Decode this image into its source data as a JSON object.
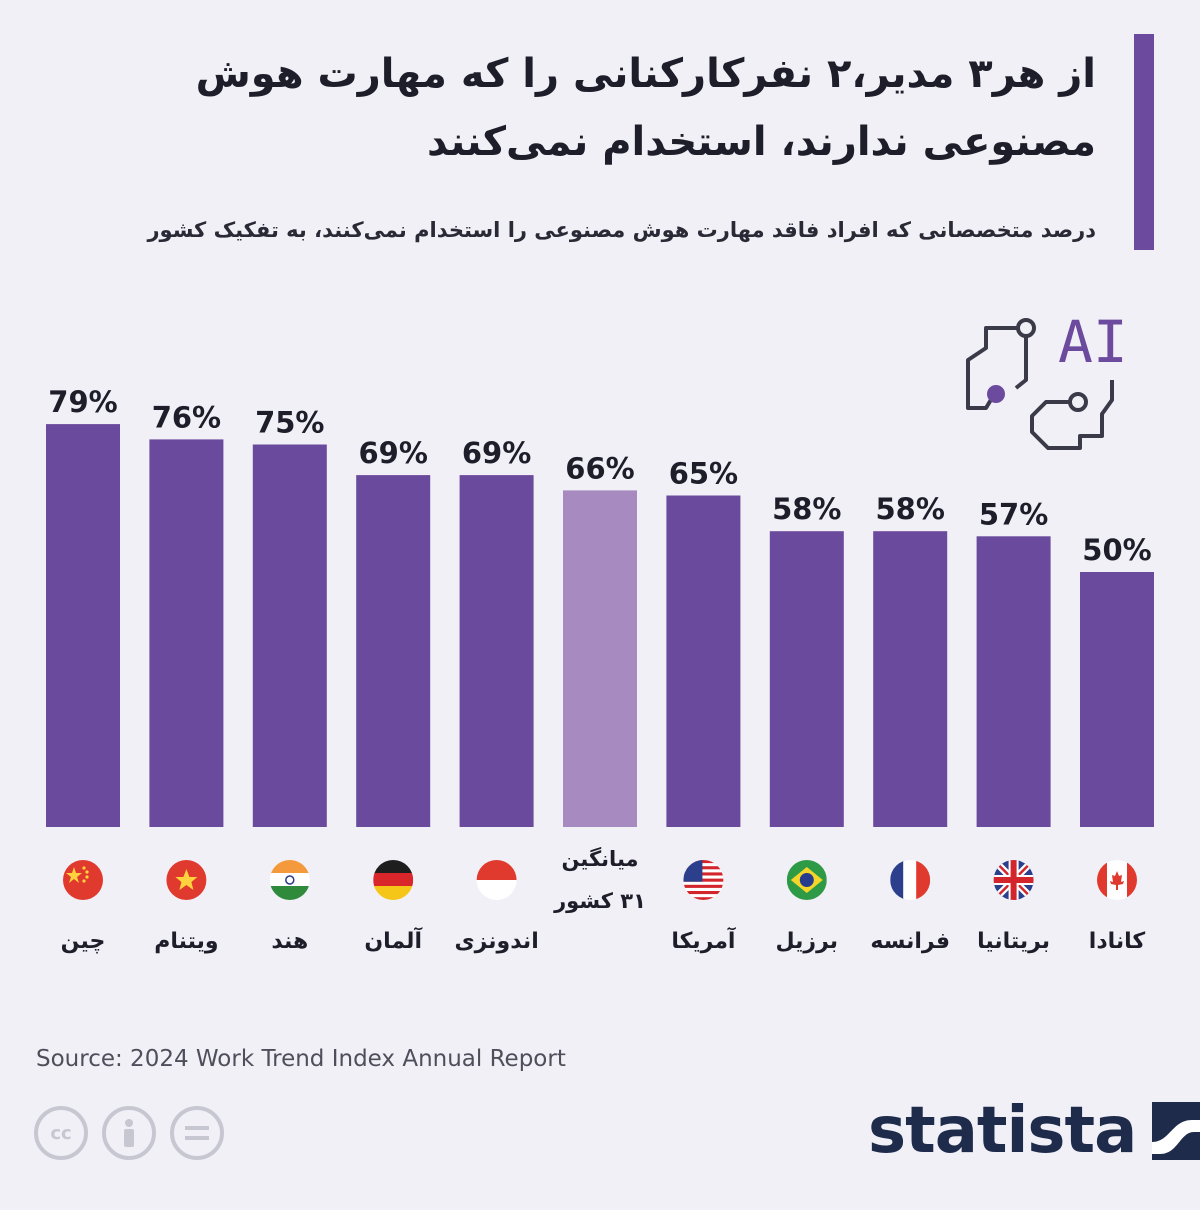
{
  "header": {
    "title": "از هر۳ مدیر،۲ نفرکارکنانی را که مهارت هوش مصنوعی ندارند، استخدام نمی‌کنند",
    "subtitle": "درصد متخصصانی که افراد فاقد مهارت هوش مصنوعی را استخدام نمی‌کنند، به تفکیک کشور"
  },
  "logo": {
    "text": "AI",
    "icon": "ai-circuit-icon"
  },
  "colors": {
    "bar": "#6a4a9c",
    "bar_highlight": "#a78ac0",
    "accent": "#6c4a9e",
    "label": "#1e1e2a"
  },
  "chart_data": {
    "type": "bar",
    "title": "از هر۳ مدیر،۲ نفرکارکنانی را که مهارت هوش مصنوعی ندارند، استخدام نمی‌کنند",
    "subtitle": "درصد متخصصانی که افراد فاقد مهارت هوش مصنوعی را استخدام نمی‌کنند، به تفکیک کشور",
    "categories": [
      "چین",
      "ویتنام",
      "هند",
      "آلمان",
      "اندونزی",
      "میانگین ۳۱ کشور",
      "آمریکا",
      "برزیل",
      "فرانسه",
      "بریتانیا",
      "کانادا"
    ],
    "values": [
      79,
      76,
      75,
      69,
      69,
      66,
      65,
      58,
      58,
      57,
      50
    ],
    "value_labels": [
      "79%",
      "76%",
      "75%",
      "69%",
      "69%",
      "66%",
      "65%",
      "58%",
      "58%",
      "57%",
      "50%"
    ],
    "flags": [
      "china-flag",
      "vietnam-flag",
      "india-flag",
      "germany-flag",
      "indonesia-flag",
      "",
      "usa-flag",
      "brazil-flag",
      "france-flag",
      "uk-flag",
      "canada-flag"
    ],
    "highlight_index": 5,
    "ylim": [
      0,
      100
    ],
    "grid": false,
    "legend": "none",
    "unit": "%"
  },
  "footer": {
    "source": "Source: 2024 Work Trend Index Annual Report",
    "brand": "statista",
    "license_icons": [
      "cc-icon",
      "attribution-icon",
      "no-derivatives-icon"
    ]
  }
}
